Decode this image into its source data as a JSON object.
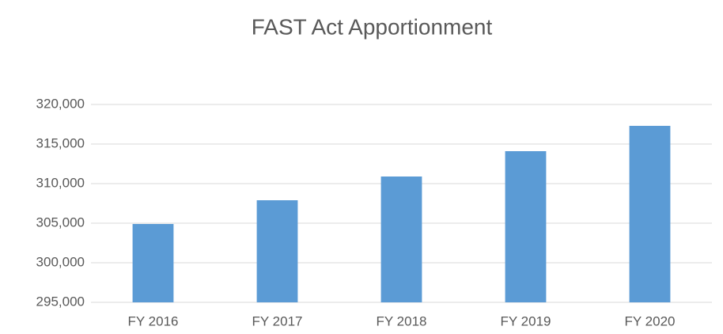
{
  "chart_data": {
    "type": "bar",
    "title": "FAST Act Apportionment",
    "categories": [
      "FY 2016",
      "FY 2017",
      "FY 2018",
      "FY 2019",
      "FY 2020"
    ],
    "values": [
      304900,
      307900,
      310900,
      314100,
      317300
    ],
    "color": "#5b9bd5",
    "ylim": [
      295000,
      320000
    ],
    "yticks": [
      {
        "value": 295000,
        "label": "295,000"
      },
      {
        "value": 300000,
        "label": "300,000"
      },
      {
        "value": 305000,
        "label": "305,000"
      },
      {
        "value": 310000,
        "label": "310,000"
      },
      {
        "value": 315000,
        "label": "315,000"
      },
      {
        "value": 320000,
        "label": "320,000"
      }
    ],
    "grid": true
  }
}
